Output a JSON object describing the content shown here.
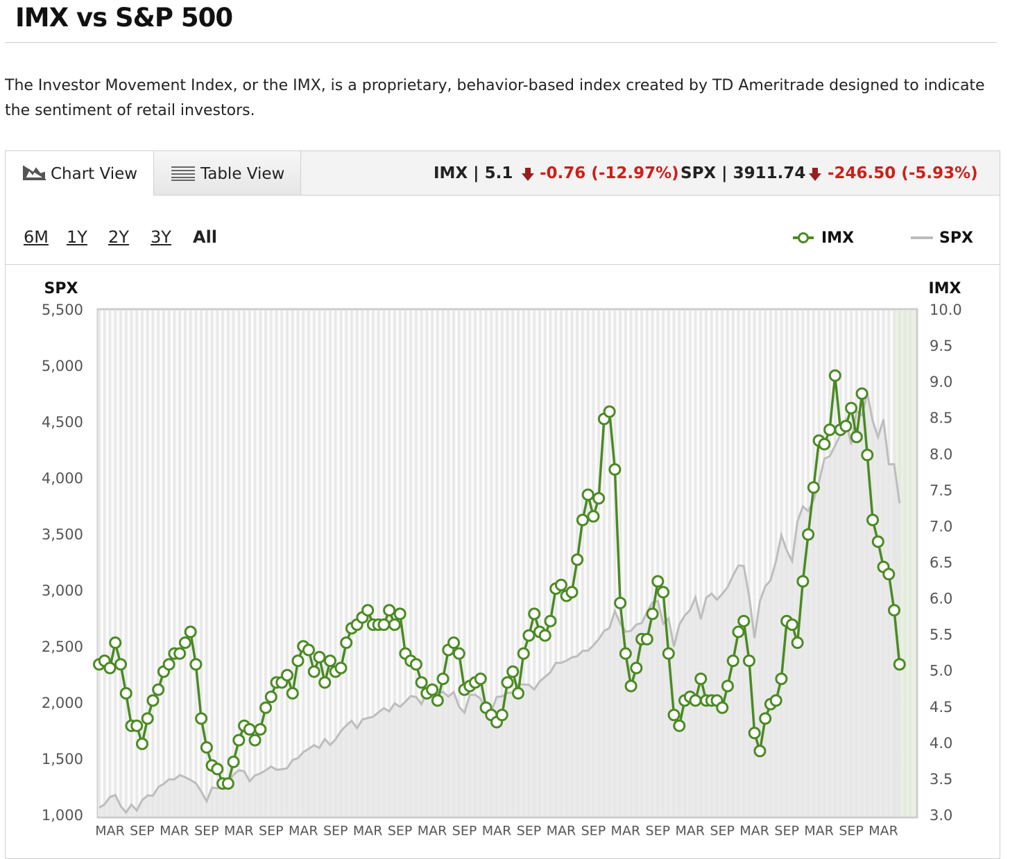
{
  "header": {
    "title": "IMX vs S&P 500",
    "description": "The Investor Movement Index, or the IMX, is a proprietary, behavior-based index created by TD Ameritrade designed to indicate the sentiment of retail investors."
  },
  "tabs": [
    "Chart View",
    "Table View"
  ],
  "stats": {
    "imx": "IMX | 5.1",
    "imx_change": "-0.76 (-12.97%)",
    "spx": "SPX | 3911.74",
    "spx_change": "-246.50 (-5.93%)"
  },
  "ranges": [
    "6M",
    "1Y",
    "2Y",
    "3Y",
    "All"
  ],
  "chart_data": {
    "type": "line",
    "ylabel": "SPX",
    "y2label": "IMX",
    "categories": [
      null,
      null,
      "MAR",
      null,
      null,
      null,
      null,
      null,
      "SEP",
      null,
      null,
      null,
      null,
      null,
      "MAR",
      null,
      null,
      null,
      null,
      null,
      "SEP",
      null,
      null,
      null,
      null,
      null,
      "MAR",
      null,
      null,
      null,
      null,
      null,
      "SEP",
      null,
      null,
      null,
      null,
      null,
      "MAR",
      null,
      null,
      null,
      null,
      null,
      "SEP",
      null,
      null,
      null,
      null,
      null,
      "MAR",
      null,
      null,
      null,
      null,
      null,
      "SEP",
      null,
      null,
      null,
      null,
      null,
      "MAR",
      null,
      null,
      null,
      null,
      null,
      "SEP",
      null,
      null,
      null,
      null,
      null,
      "MAR",
      null,
      null,
      null,
      null,
      null,
      "SEP",
      null,
      null,
      null,
      null,
      null,
      "MAR",
      null,
      null,
      null,
      null,
      null,
      "SEP",
      null,
      null,
      null,
      null,
      null,
      "MAR",
      null,
      null,
      null,
      null,
      null,
      "SEP",
      null,
      null,
      null,
      null,
      null,
      "MAR",
      null,
      null,
      null,
      null,
      null,
      "SEP",
      null,
      null,
      null,
      null,
      null,
      "MAR",
      null,
      null,
      null,
      null,
      null,
      "SEP",
      null,
      null,
      null,
      null,
      null,
      "MAR",
      null,
      null,
      null,
      null,
      null,
      "SEP",
      null,
      null,
      null,
      null,
      null,
      "MAR",
      null,
      null,
      null
    ],
    "series": [
      {
        "name": "SPX",
        "type": "area",
        "color": "#bdbdbd",
        "fill": "#e6e6e6",
        "values": [
          1074,
          1104,
          1169,
          1187,
          1089,
          1031,
          1102,
          1049,
          1141,
          1183,
          1181,
          1258,
          1286,
          1327,
          1326,
          1364,
          1345,
          1321,
          1292,
          1219,
          1131,
          1253,
          1247,
          1258,
          1312,
          1366,
          1408,
          1398,
          1310,
          1362,
          1379,
          1407,
          1441,
          1412,
          1416,
          1426,
          1498,
          1515,
          1569,
          1598,
          1631,
          1606,
          1686,
          1633,
          1682,
          1757,
          1806,
          1848,
          1783,
          1859,
          1872,
          1884,
          1924,
          1960,
          1931,
          2003,
          1972,
          2018,
          2068,
          2059,
          1995,
          2105,
          2068,
          2086,
          2107,
          2063,
          2104,
          1972,
          1920,
          2079,
          2080,
          2044,
          1940,
          1932,
          2060,
          2065,
          2097,
          2099,
          2174,
          2171,
          2168,
          2126,
          2199,
          2239,
          2279,
          2364,
          2363,
          2384,
          2412,
          2423,
          2470,
          2472,
          2519,
          2575,
          2648,
          2674,
          2824,
          2714,
          2641,
          2648,
          2705,
          2718,
          2816,
          2902,
          2914,
          2712,
          2760,
          2507,
          2704,
          2784,
          2834,
          2946,
          2752,
          2942,
          2980,
          2926,
          2977,
          3038,
          3141,
          3231,
          3226,
          2954,
          2585,
          2912,
          3044,
          3100,
          3271,
          3500,
          3363,
          3270,
          3622,
          3756,
          3714,
          3811,
          3973,
          4181,
          4204,
          4298,
          4395,
          4523,
          4308,
          4605,
          4567,
          4766,
          4516,
          4374,
          4530,
          4132,
          4132,
          3785
        ]
      },
      {
        "name": "IMX",
        "type": "line",
        "axis": "y2",
        "color": "#4a8a22",
        "values": [
          5.1,
          5.15,
          5.05,
          5.4,
          5.1,
          4.7,
          4.25,
          4.25,
          4.0,
          4.35,
          4.6,
          4.75,
          5.0,
          5.1,
          5.25,
          5.25,
          5.4,
          5.55,
          5.1,
          4.35,
          3.95,
          3.7,
          3.65,
          3.45,
          3.45,
          3.75,
          4.05,
          4.25,
          4.2,
          4.05,
          4.2,
          4.5,
          4.65,
          4.85,
          4.85,
          4.95,
          4.7,
          5.15,
          5.35,
          5.3,
          5.0,
          5.2,
          4.85,
          5.15,
          5.0,
          5.05,
          5.4,
          5.6,
          5.65,
          5.75,
          5.85,
          5.65,
          5.65,
          5.65,
          5.85,
          5.65,
          5.8,
          5.25,
          5.15,
          5.1,
          4.85,
          4.7,
          4.75,
          4.6,
          4.9,
          5.3,
          5.4,
          5.25,
          4.75,
          4.8,
          4.85,
          4.9,
          4.5,
          4.4,
          4.3,
          4.4,
          4.85,
          5.0,
          4.7,
          5.25,
          5.5,
          5.8,
          5.55,
          5.5,
          5.7,
          6.15,
          6.2,
          6.05,
          6.1,
          6.55,
          7.1,
          7.45,
          7.15,
          7.4,
          8.5,
          8.6,
          7.8,
          5.95,
          5.25,
          4.8,
          5.05,
          5.45,
          5.45,
          5.8,
          6.25,
          6.1,
          5.25,
          4.4,
          4.25,
          4.6,
          4.65,
          4.6,
          4.9,
          4.6,
          4.6,
          4.6,
          4.5,
          4.8,
          5.15,
          5.55,
          5.7,
          5.15,
          4.15,
          3.9,
          4.35,
          4.55,
          4.6,
          4.9,
          5.7,
          5.65,
          5.4,
          6.25,
          6.9,
          7.55,
          8.2,
          8.15,
          8.35,
          9.1,
          8.35,
          8.4,
          8.65,
          8.25,
          8.85,
          8.0,
          7.1,
          6.8,
          6.45,
          6.35,
          5.85,
          5.1
        ]
      }
    ],
    "ylim": [
      1000,
      5500
    ],
    "yticks": [
      {
        "value": 1000,
        "label": "1,000"
      },
      {
        "value": 1500,
        "label": "1,500"
      },
      {
        "value": 2000,
        "label": "2,000"
      },
      {
        "value": 2500,
        "label": "2,500"
      },
      {
        "value": 3000,
        "label": "3,000"
      },
      {
        "value": 3500,
        "label": "3,500"
      },
      {
        "value": 4000,
        "label": "4,000"
      },
      {
        "value": 4500,
        "label": "4,500"
      },
      {
        "value": 5000,
        "label": "5,000"
      },
      {
        "value": 5500,
        "label": "5,500"
      }
    ],
    "y2lim": [
      3,
      10
    ],
    "y2ticks": [
      {
        "value": 3,
        "label": "3.0"
      },
      3.5,
      {
        "value": 4,
        "label": "4.0"
      },
      4.5,
      {
        "value": 5,
        "label": "5.0"
      },
      5.5,
      {
        "value": 6,
        "label": "6.0"
      },
      6.5,
      {
        "value": 7,
        "label": "7.0"
      },
      7.5,
      {
        "value": 8,
        "label": "8.0"
      },
      8.5,
      {
        "value": 9,
        "label": "9.0"
      },
      9.5,
      {
        "value": 10,
        "label": "10.0"
      }
    ],
    "grid": false
  }
}
